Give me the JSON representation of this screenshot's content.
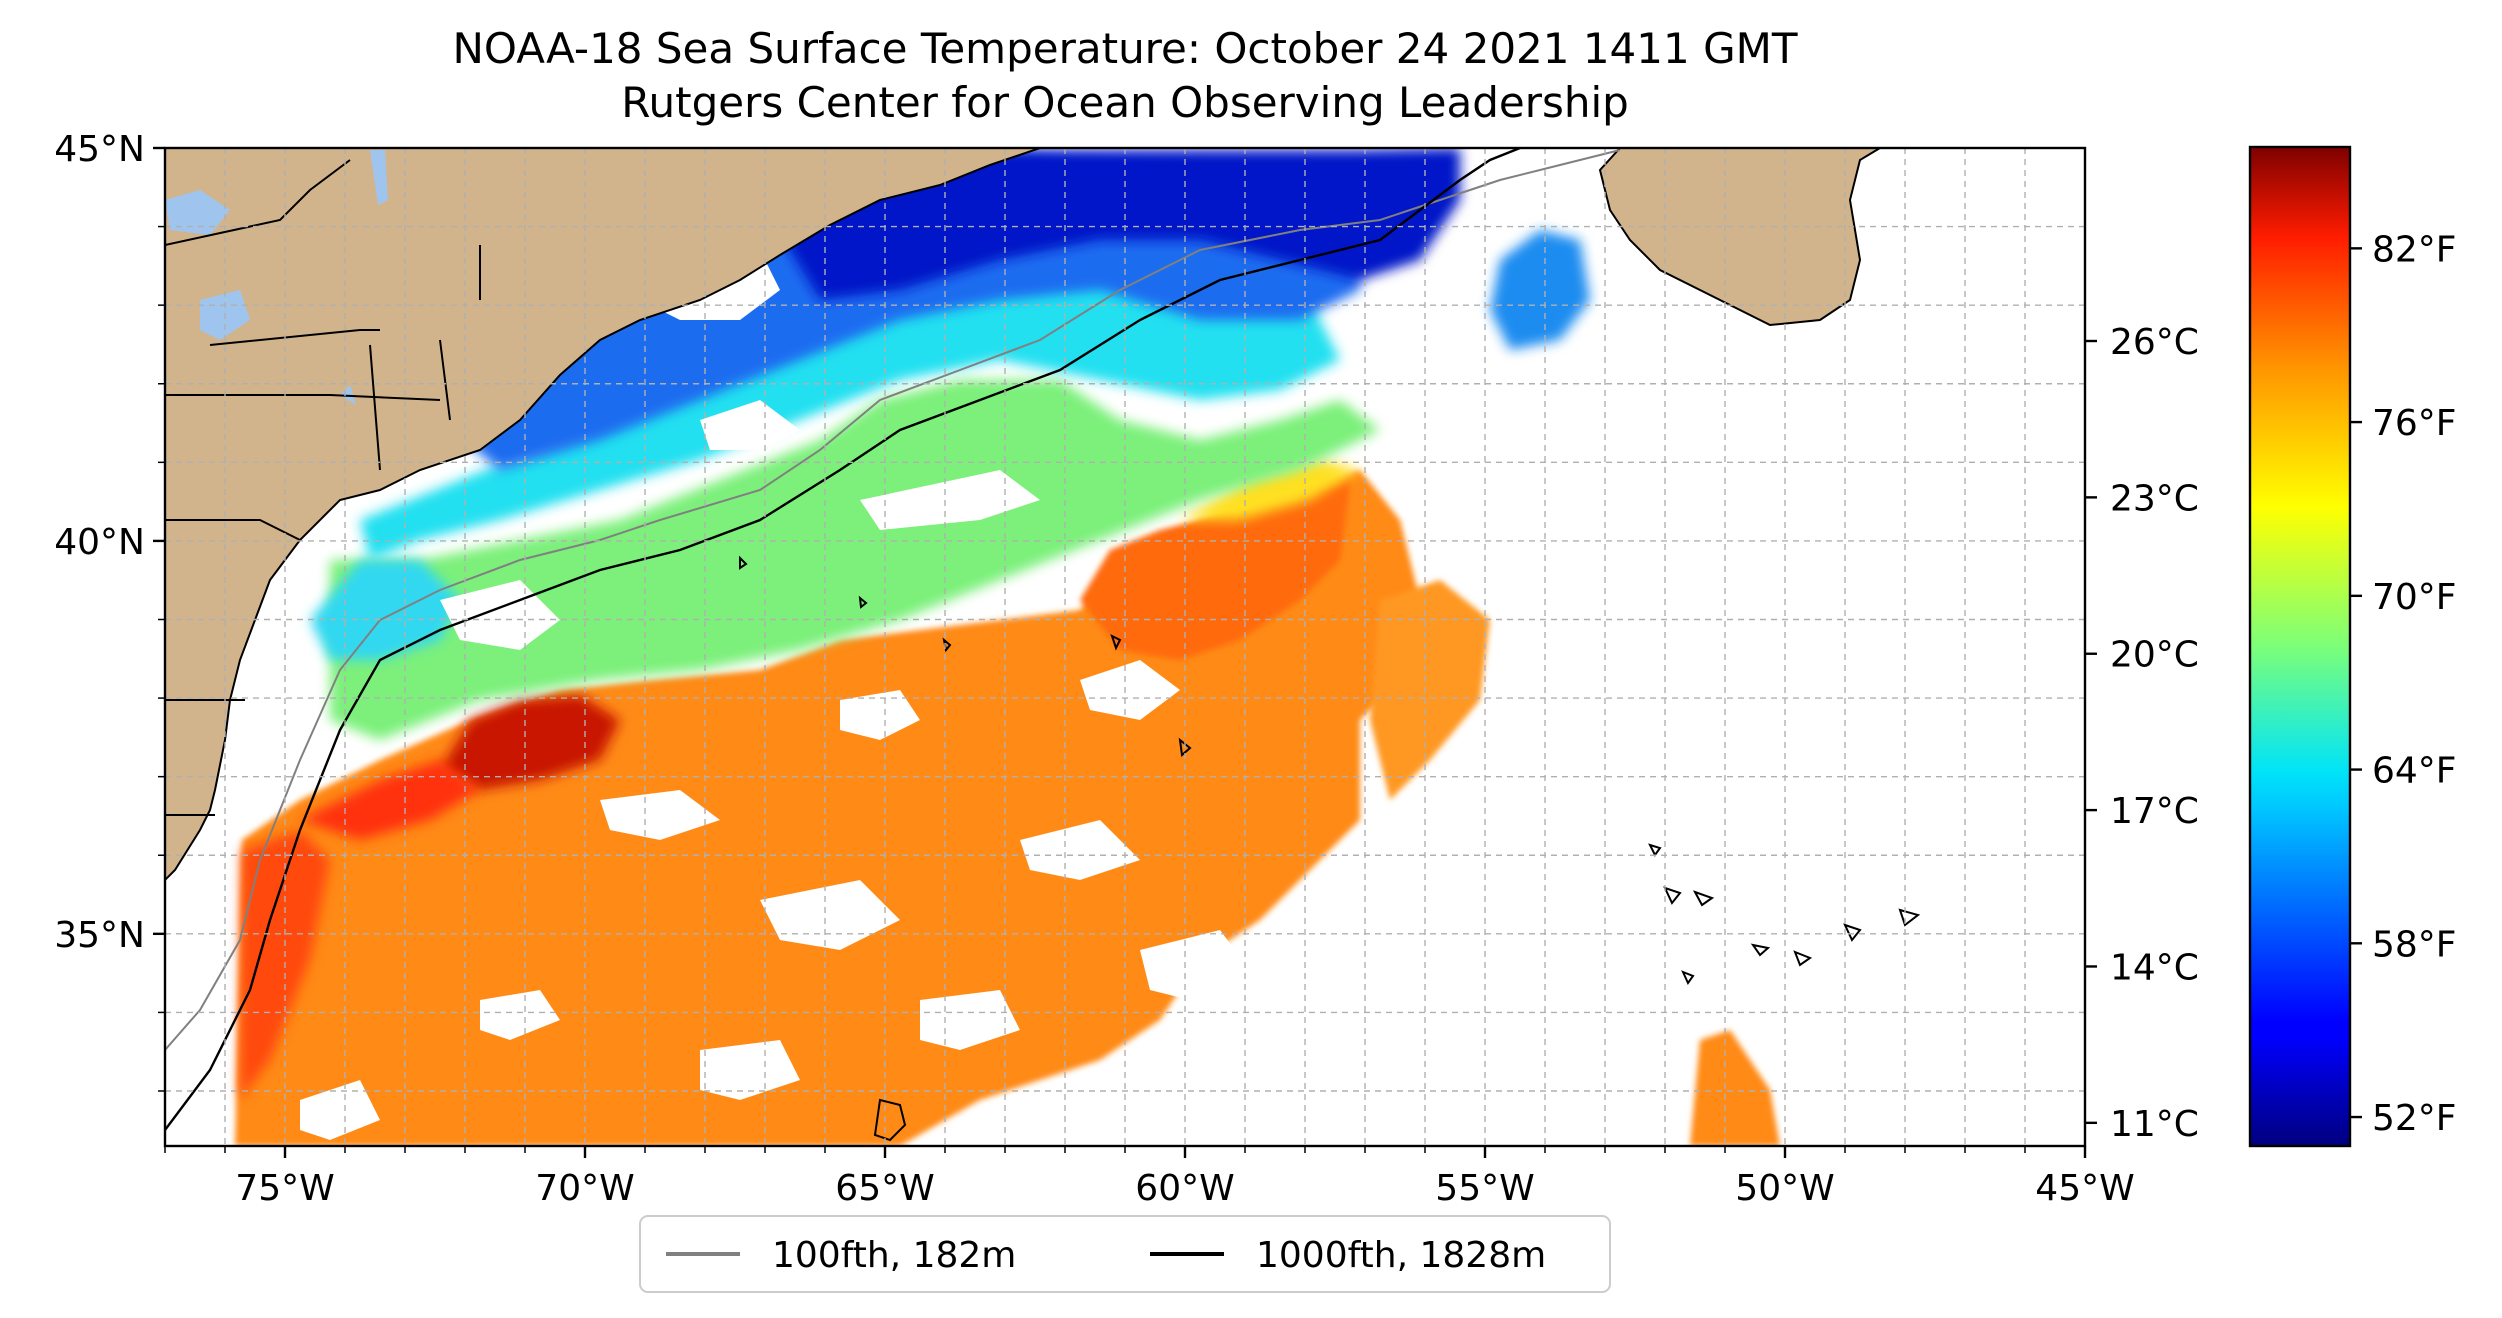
{
  "title": {
    "line1": "NOAA-18 Sea Surface Temperature: October 24 2021 1411 GMT",
    "line2": "Rutgers Center for Ocean Observing Leadership"
  },
  "map": {
    "lon_range": [
      -77,
      -45
    ],
    "lat_range": [
      32.3,
      45
    ],
    "x_ticks": [
      {
        "value": -75,
        "label": "75°W"
      },
      {
        "value": -70,
        "label": "70°W"
      },
      {
        "value": -65,
        "label": "65°W"
      },
      {
        "value": -60,
        "label": "60°W"
      },
      {
        "value": -55,
        "label": "55°W"
      },
      {
        "value": -50,
        "label": "50°W"
      },
      {
        "value": -45,
        "label": "45°W"
      }
    ],
    "y_ticks": [
      {
        "value": 45,
        "label": "45°N"
      },
      {
        "value": 40,
        "label": "40°N"
      },
      {
        "value": 35,
        "label": "35°N"
      }
    ],
    "gridlines": "dashed, every 1°",
    "land_color": "#d2b48c",
    "lake_color": "#9fc4ee",
    "colors": {
      "cold": "#0014c8",
      "cool": "#00c8f0",
      "mild": "#78f078",
      "warm": "#ff8c14",
      "hot": "#c81400"
    }
  },
  "legend": {
    "items": [
      {
        "label": "100fth, 182m",
        "color": "#808080"
      },
      {
        "label": "1000fth, 1828m",
        "color": "#000000"
      }
    ],
    "placement": "bottom-center"
  },
  "colorbar": {
    "colormap": "jet",
    "range_f": [
      51,
      85.5
    ],
    "celsius_labels": [
      {
        "value_f": 78.8,
        "label": "26°C"
      },
      {
        "value_f": 73.4,
        "label": "23°C"
      },
      {
        "value_f": 68.0,
        "label": "20°C"
      },
      {
        "value_f": 62.6,
        "label": "17°C"
      },
      {
        "value_f": 57.2,
        "label": "14°C"
      },
      {
        "value_f": 51.8,
        "label": "11°C"
      }
    ],
    "fahrenheit_labels": [
      {
        "value_f": 82,
        "label": "82°F"
      },
      {
        "value_f": 76,
        "label": "76°F"
      },
      {
        "value_f": 70,
        "label": "70°F"
      },
      {
        "value_f": 64,
        "label": "64°F"
      },
      {
        "value_f": 58,
        "label": "58°F"
      },
      {
        "value_f": 52,
        "label": "52°F"
      }
    ]
  }
}
